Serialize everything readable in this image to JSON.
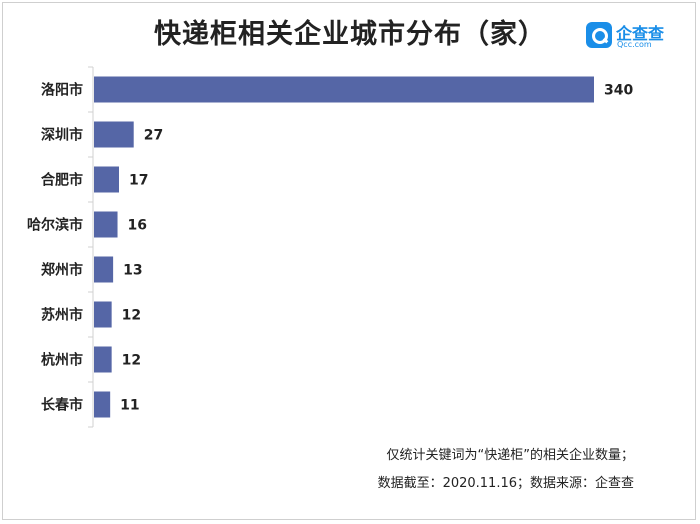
{
  "title": "快递柜相关企业城市分布（家）",
  "brand": {
    "name": "企查查",
    "domain": "Qcc.com",
    "icon": "magnifier-logo-icon",
    "color": "#1a8ee8"
  },
  "chart_data": {
    "type": "bar",
    "orientation": "horizontal",
    "title": "快递柜相关企业城市分布（家）",
    "categories": [
      "洛阳市",
      "深圳市",
      "合肥市",
      "哈尔滨市",
      "郑州市",
      "苏州市",
      "杭州市",
      "长春市"
    ],
    "values": [
      340,
      27,
      17,
      16,
      13,
      12,
      12,
      11
    ],
    "data_labels": [
      "340",
      "27",
      "17",
      "16",
      "13",
      "12",
      "12",
      "11"
    ],
    "bar_color": "#5566a6",
    "xlim": [
      0,
      340
    ],
    "grid": false,
    "legend": "none"
  },
  "footnotes": [
    "仅统计关键词为“快递柜”的相关企业数量；",
    "数据截至：2020.11.16；数据来源：企查查"
  ]
}
